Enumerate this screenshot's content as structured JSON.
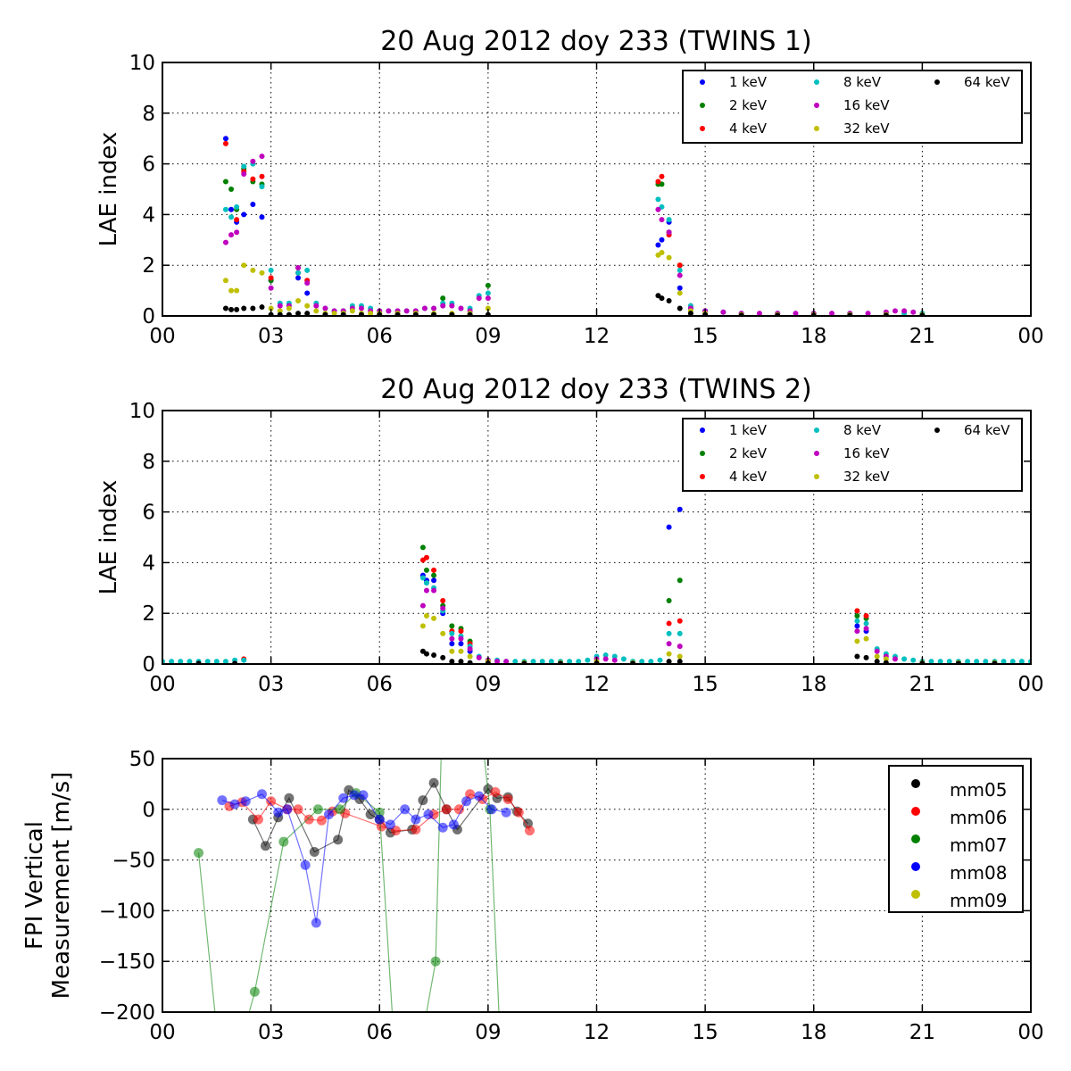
{
  "colors": {
    "1 keV": "#0000ff",
    "2 keV": "#008000",
    "4 keV": "#ff0000",
    "8 keV": "#00bfbf",
    "16 keV": "#bf00bf",
    "32 keV": "#bfbf00",
    "64 keV": "#000000",
    "mm05": "#000000",
    "mm06": "#ff0000",
    "mm07": "#008000",
    "mm08": "#0000ff",
    "mm09": "#bfbf00"
  },
  "xticks": [
    "00",
    "03",
    "06",
    "09",
    "12",
    "15",
    "18",
    "21",
    "00"
  ],
  "chart_data": [
    {
      "type": "scatter",
      "title": "20 Aug 2012 doy 233 (TWINS 1)",
      "xlabel": "",
      "ylabel": "LAE index",
      "xlim": [
        0,
        24
      ],
      "ylim": [
        0,
        10
      ],
      "yticks": [
        "0",
        "2",
        "4",
        "6",
        "8",
        "10"
      ],
      "grid": true,
      "legend": "top-right",
      "series": [
        {
          "name": "1 keV",
          "x": [
            1.75,
            1.9,
            2.05,
            2.25,
            2.5,
            2.75,
            3.0,
            3.75,
            4.0,
            13.7,
            13.8,
            14.0,
            14.3,
            14.6,
            15.0
          ],
          "y": [
            7.0,
            4.2,
            3.7,
            4.0,
            4.4,
            3.9,
            1.4,
            1.5,
            0.9,
            2.8,
            3.0,
            3.7,
            1.1,
            0.3,
            0.2
          ]
        },
        {
          "name": "2 keV",
          "x": [
            1.75,
            1.9,
            2.05,
            2.25,
            2.5,
            2.75,
            3.0,
            3.75,
            7.75,
            9.0,
            13.7,
            13.8,
            14.0,
            14.3
          ],
          "y": [
            5.3,
            5.0,
            4.2,
            5.8,
            5.3,
            5.2,
            1.4,
            1.9,
            0.7,
            1.2,
            5.2,
            5.2,
            3.3,
            2.0
          ]
        },
        {
          "name": "4 keV",
          "x": [
            1.75,
            2.05,
            2.25,
            2.5,
            2.75,
            3.0,
            3.75,
            4.0,
            13.7,
            13.8,
            14.0,
            14.3,
            14.6
          ],
          "y": [
            6.8,
            3.8,
            5.7,
            5.4,
            5.5,
            1.5,
            1.7,
            1.4,
            5.3,
            5.5,
            3.2,
            2.0,
            0.4
          ]
        },
        {
          "name": "8 keV",
          "x": [
            1.75,
            1.9,
            2.05,
            2.25,
            2.5,
            2.75,
            3.0,
            3.25,
            3.5,
            3.75,
            4.0,
            4.25,
            4.5,
            4.75,
            5.0,
            5.25,
            5.5,
            5.75,
            6.0,
            6.25,
            6.5,
            6.75,
            7.0,
            7.25,
            7.5,
            7.75,
            8.0,
            8.25,
            8.5,
            8.75,
            9.0,
            13.7,
            13.8,
            14.0,
            14.3,
            14.6,
            15.0,
            15.5,
            16.0,
            17.0,
            18.0,
            19.0,
            20.0,
            20.5,
            21.0
          ],
          "y": [
            4.2,
            3.9,
            4.3,
            5.9,
            6.0,
            5.1,
            1.8,
            0.5,
            0.5,
            1.7,
            1.8,
            0.5,
            0.3,
            0.2,
            0.2,
            0.4,
            0.4,
            0.3,
            0.2,
            0.2,
            0.2,
            0.2,
            0.2,
            0.3,
            0.3,
            0.5,
            0.5,
            0.3,
            0.3,
            0.8,
            0.9,
            4.6,
            4.3,
            3.8,
            1.8,
            0.4,
            0.2,
            0.15,
            0.1,
            0.1,
            0.1,
            0.1,
            0.1,
            0.1,
            0.1
          ]
        },
        {
          "name": "16 keV",
          "x": [
            1.75,
            1.9,
            2.05,
            2.25,
            2.5,
            2.75,
            3.0,
            3.25,
            3.5,
            3.75,
            4.0,
            4.25,
            4.5,
            4.75,
            5.0,
            5.25,
            5.5,
            5.75,
            6.0,
            6.25,
            6.5,
            6.75,
            7.0,
            7.25,
            7.5,
            7.75,
            8.0,
            8.25,
            8.5,
            8.75,
            9.0,
            13.7,
            13.8,
            14.0,
            14.3,
            14.6,
            15.0,
            15.5,
            16.0,
            16.5,
            17.0,
            17.5,
            18.0,
            18.5,
            19.0,
            19.5,
            20.0,
            20.25,
            20.5,
            20.75
          ],
          "y": [
            2.9,
            3.2,
            3.3,
            5.6,
            6.1,
            6.3,
            1.1,
            0.4,
            0.4,
            1.9,
            1.3,
            0.4,
            0.3,
            0.2,
            0.2,
            0.3,
            0.3,
            0.2,
            0.2,
            0.2,
            0.2,
            0.2,
            0.2,
            0.3,
            0.3,
            0.4,
            0.4,
            0.3,
            0.2,
            0.7,
            0.7,
            4.2,
            3.8,
            3.3,
            1.6,
            0.3,
            0.2,
            0.15,
            0.1,
            0.1,
            0.1,
            0.1,
            0.1,
            0.1,
            0.1,
            0.1,
            0.15,
            0.2,
            0.2,
            0.15
          ]
        },
        {
          "name": "32 keV",
          "x": [
            1.75,
            1.9,
            2.05,
            2.25,
            2.5,
            2.75,
            3.0,
            3.25,
            3.5,
            3.75,
            4.0,
            4.25,
            4.5,
            4.75,
            5.0,
            5.25,
            5.5,
            5.75,
            6.0,
            6.5,
            7.0,
            7.5,
            8.0,
            8.5,
            9.0,
            13.7,
            13.8,
            14.0,
            14.3,
            14.6,
            15.0,
            16.0,
            17.0,
            18.0,
            19.0,
            20.0,
            21.0
          ],
          "y": [
            1.4,
            1.0,
            1.0,
            2.0,
            1.8,
            1.7,
            0.3,
            0.2,
            0.3,
            0.6,
            0.4,
            0.2,
            0.1,
            0.1,
            0.1,
            0.2,
            0.1,
            0.1,
            0.1,
            0.1,
            0.1,
            0.1,
            0.1,
            0.1,
            0.3,
            2.4,
            2.5,
            2.3,
            0.9,
            0.2,
            0.1,
            0.05,
            0.05,
            0.05,
            0.05,
            0.05,
            0.05
          ]
        },
        {
          "name": "64 keV",
          "x": [
            1.75,
            1.9,
            2.05,
            2.25,
            2.5,
            2.75,
            3.0,
            3.25,
            3.5,
            3.75,
            4.0,
            4.5,
            5.0,
            5.5,
            6.0,
            6.5,
            7.0,
            7.5,
            8.0,
            8.5,
            9.0,
            13.7,
            13.8,
            14.0,
            14.3,
            14.6,
            15.0,
            16.0,
            17.0,
            18.0,
            19.0,
            20.0,
            21.0
          ],
          "y": [
            0.3,
            0.25,
            0.25,
            0.3,
            0.3,
            0.35,
            0.05,
            0.05,
            0.05,
            0.1,
            0.1,
            0.05,
            0.05,
            0.05,
            0.05,
            0.05,
            0.05,
            0.05,
            0.05,
            0.05,
            0.05,
            0.8,
            0.7,
            0.6,
            0.3,
            0.1,
            0.05,
            0.02,
            0.02,
            0.02,
            0.02,
            0.02,
            0.02
          ]
        }
      ]
    },
    {
      "type": "scatter",
      "title": "20 Aug 2012 doy 233 (TWINS 2)",
      "xlabel": "",
      "ylabel": "LAE index",
      "xlim": [
        0,
        24
      ],
      "ylim": [
        0,
        10
      ],
      "yticks": [
        "0",
        "2",
        "4",
        "6",
        "8",
        "10"
      ],
      "grid": true,
      "legend": "top-right",
      "series": [
        {
          "name": "1 keV",
          "x": [
            7.2,
            7.3,
            7.5,
            7.75,
            8.0,
            8.25,
            8.5,
            14.0,
            14.3,
            19.2,
            19.45
          ],
          "y": [
            3.5,
            3.3,
            3.3,
            2.0,
            0.8,
            0.8,
            0.5,
            5.4,
            6.1,
            1.5,
            1.3
          ]
        },
        {
          "name": "2 keV",
          "x": [
            7.2,
            7.3,
            7.5,
            7.75,
            8.0,
            8.25,
            8.5,
            14.0,
            14.3,
            19.2,
            19.45
          ],
          "y": [
            4.6,
            3.7,
            3.5,
            2.3,
            1.5,
            1.4,
            0.9,
            2.5,
            3.3,
            1.9,
            1.8
          ]
        },
        {
          "name": "4 keV",
          "x": [
            7.2,
            7.3,
            7.5,
            7.75,
            8.0,
            8.25,
            8.5,
            14.0,
            14.3,
            19.2,
            19.45,
            2.25
          ],
          "y": [
            4.1,
            4.2,
            3.7,
            2.5,
            1.3,
            1.3,
            0.8,
            1.6,
            1.7,
            2.1,
            1.9,
            0.2
          ]
        },
        {
          "name": "8 keV",
          "x": [
            0.0,
            0.25,
            0.5,
            0.75,
            1.0,
            1.25,
            1.5,
            1.75,
            2.0,
            2.25,
            7.2,
            7.3,
            7.5,
            7.75,
            8.0,
            8.25,
            8.5,
            8.75,
            9.0,
            9.25,
            9.5,
            9.75,
            10.0,
            10.25,
            10.5,
            10.75,
            11.0,
            11.25,
            11.5,
            11.75,
            12.0,
            12.25,
            12.5,
            12.75,
            13.0,
            13.25,
            13.5,
            13.75,
            14.0,
            14.3,
            19.2,
            19.45,
            19.75,
            20.0,
            20.25,
            20.5,
            20.75,
            21.0,
            21.25,
            21.5,
            21.75,
            22.0,
            22.25,
            22.5,
            22.75,
            23.0,
            23.25,
            23.5,
            23.75,
            24.0
          ],
          "y": [
            0.1,
            0.1,
            0.1,
            0.1,
            0.1,
            0.1,
            0.1,
            0.1,
            0.15,
            0.15,
            3.4,
            3.2,
            3.0,
            2.1,
            1.2,
            1.1,
            0.7,
            0.3,
            0.15,
            0.15,
            0.1,
            0.1,
            0.1,
            0.1,
            0.1,
            0.1,
            0.1,
            0.1,
            0.1,
            0.15,
            0.3,
            0.35,
            0.3,
            0.2,
            0.1,
            0.1,
            0.1,
            0.15,
            1.2,
            1.2,
            1.7,
            1.6,
            0.6,
            0.4,
            0.3,
            0.2,
            0.15,
            0.1,
            0.1,
            0.1,
            0.1,
            0.1,
            0.1,
            0.1,
            0.1,
            0.1,
            0.1,
            0.1,
            0.1,
            0.1
          ]
        },
        {
          "name": "16 keV",
          "x": [
            7.2,
            7.3,
            7.5,
            7.75,
            8.0,
            8.25,
            8.5,
            8.75,
            9.0,
            9.25,
            9.5,
            12.0,
            12.25,
            12.5,
            14.0,
            14.3,
            19.2,
            19.45,
            19.75,
            20.0,
            20.25
          ],
          "y": [
            2.3,
            2.9,
            2.9,
            2.2,
            1.0,
            1.0,
            0.6,
            0.25,
            0.15,
            0.1,
            0.1,
            0.2,
            0.2,
            0.15,
            0.8,
            0.7,
            1.3,
            1.4,
            0.5,
            0.3,
            0.2
          ]
        },
        {
          "name": "32 keV",
          "x": [
            7.2,
            7.3,
            7.5,
            7.75,
            8.0,
            8.25,
            8.5,
            9.0,
            10.0,
            11.0,
            12.0,
            13.0,
            14.0,
            14.3,
            19.2,
            19.45,
            19.75,
            20.0,
            21.0,
            22.0,
            23.0
          ],
          "y": [
            1.5,
            1.9,
            1.8,
            1.2,
            0.5,
            0.5,
            0.3,
            0.1,
            0.05,
            0.05,
            0.1,
            0.05,
            0.4,
            0.3,
            0.9,
            1.0,
            0.3,
            0.2,
            0.05,
            0.05,
            0.05
          ]
        },
        {
          "name": "64 keV",
          "x": [
            7.2,
            7.3,
            7.5,
            7.75,
            8.0,
            8.25,
            8.5,
            9.0,
            10.0,
            11.0,
            12.0,
            13.0,
            14.0,
            14.3,
            19.2,
            19.45,
            19.75,
            20.0,
            21.0,
            22.0,
            23.0,
            1.0,
            2.0
          ],
          "y": [
            0.5,
            0.4,
            0.35,
            0.25,
            0.1,
            0.1,
            0.05,
            0.03,
            0.02,
            0.02,
            0.03,
            0.02,
            0.1,
            0.1,
            0.3,
            0.25,
            0.1,
            0.05,
            0.02,
            0.02,
            0.02,
            0.02,
            0.02
          ]
        }
      ]
    },
    {
      "type": "line",
      "title": "",
      "xlabel": "",
      "ylabel": [
        "FPI Vertical",
        "Measurement [m/s]"
      ],
      "xlim": [
        0,
        24
      ],
      "ylim": [
        -200,
        50
      ],
      "yticks": [
        "−200",
        "−150",
        "−100",
        "−50",
        "0",
        "50"
      ],
      "grid": true,
      "legend": "top-right",
      "series": [
        {
          "name": "mm05",
          "x": [
            2.5,
            2.85,
            3.2,
            3.5,
            4.2,
            4.85,
            5.15,
            5.45,
            5.75,
            6.0,
            6.3,
            6.9,
            7.2,
            7.5,
            7.85,
            8.15,
            9.0,
            9.25,
            9.55,
            9.8,
            10.1
          ],
          "y": [
            -10,
            -36,
            -8,
            11,
            -42,
            -30,
            19,
            10,
            -5,
            -10,
            -23,
            -20,
            9,
            26,
            0,
            -20,
            20,
            11,
            12,
            -2,
            -14
          ]
        },
        {
          "name": "mm06",
          "x": [
            1.85,
            2.2,
            2.65,
            3.0,
            3.45,
            3.75,
            4.05,
            4.4,
            4.7,
            5.05,
            6.05,
            6.45,
            7.0,
            7.5,
            7.85,
            8.2,
            8.5,
            8.85,
            9.2,
            9.55,
            9.85,
            10.15
          ],
          "y": [
            3,
            7,
            -10,
            8,
            0,
            0,
            -10,
            -11,
            -2,
            -4,
            -17,
            -21,
            -20,
            -5,
            0,
            0,
            15,
            10,
            17,
            10,
            -3,
            -21
          ]
        },
        {
          "name": "mm07",
          "x": [
            1.0,
            1.45,
            2.4,
            2.55,
            3.35,
            4.3,
            4.9,
            5.35,
            6.0,
            6.35,
            6.5,
            7.3,
            7.55,
            7.7,
            8.9,
            9.05,
            9.3,
            9.4
          ],
          "y": [
            -43,
            -200,
            -200,
            -180,
            -32,
            0,
            0,
            16,
            -3,
            -200,
            -200,
            -200,
            -150,
            50,
            50,
            0,
            -200,
            -200
          ]
        },
        {
          "name": "mm08",
          "x": [
            1.65,
            2.0,
            2.3,
            2.75,
            3.2,
            3.45,
            3.95,
            4.25,
            4.6,
            5.0,
            5.3,
            5.55,
            6.0,
            6.3,
            6.7,
            7.0,
            7.35,
            7.75,
            8.05,
            8.4,
            8.75,
            9.1,
            9.5
          ],
          "y": [
            9,
            5,
            8,
            15,
            -3,
            0,
            -55,
            -112,
            -5,
            11,
            14,
            14,
            -10,
            -15,
            0,
            -10,
            -5,
            -18,
            -15,
            8,
            13,
            0,
            -3
          ]
        },
        {
          "name": "mm09",
          "x": [],
          "y": []
        }
      ]
    }
  ]
}
